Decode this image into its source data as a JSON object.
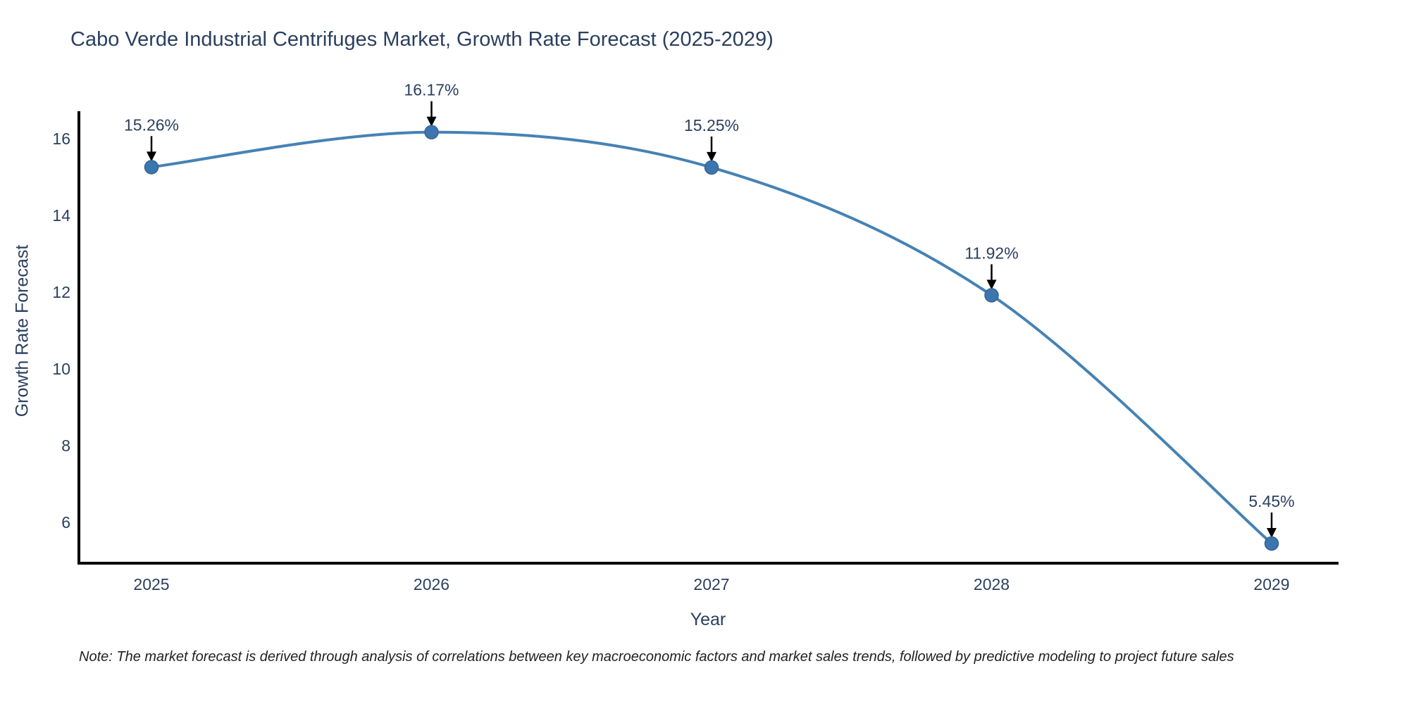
{
  "title": "Cabo Verde Industrial Centrifuges Market, Growth Rate Forecast (2025-2029)",
  "note": "Note: The market forecast is derived through analysis of correlations between key macroeconomic factors and market sales trends, followed by predictive modeling to project future sales",
  "chart_data": {
    "type": "line",
    "title": "Cabo Verde Industrial Centrifuges Market, Growth Rate Forecast (2025-2029)",
    "xlabel": "Year",
    "ylabel": "Growth Rate Forecast",
    "categories": [
      "2025",
      "2026",
      "2027",
      "2028",
      "2029"
    ],
    "values": [
      15.26,
      16.17,
      15.25,
      11.92,
      5.45
    ],
    "point_labels": [
      "15.26%",
      "16.17%",
      "15.25%",
      "11.92%",
      "5.45%"
    ],
    "y_ticks": [
      6,
      8,
      10,
      12,
      14,
      16
    ],
    "ylim": [
      4.9,
      16.8
    ],
    "line_shape": "spline",
    "grid": false,
    "legend": "none",
    "annotations_have_arrows": true,
    "colors": {
      "line": "#4682b4",
      "marker": "#3c76b0",
      "marker_edge": "#36648b",
      "axis": "#000000",
      "text": "#2a3f5f",
      "arrow": "#000000",
      "note_text": "#222222",
      "background": "#ffffff"
    }
  }
}
